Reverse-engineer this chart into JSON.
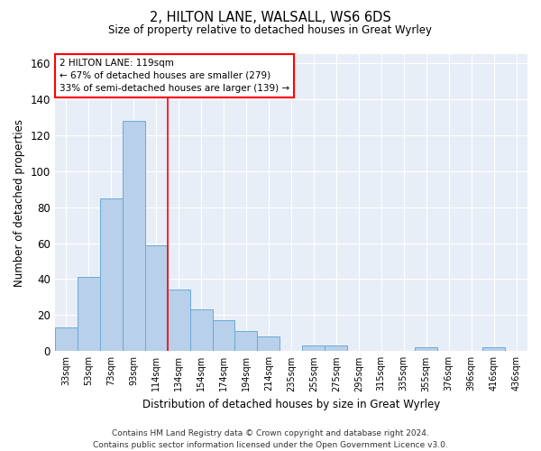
{
  "title1": "2, HILTON LANE, WALSALL, WS6 6DS",
  "title2": "Size of property relative to detached houses in Great Wyrley",
  "xlabel": "Distribution of detached houses by size in Great Wyrley",
  "ylabel": "Number of detached properties",
  "categories": [
    "33sqm",
    "53sqm",
    "73sqm",
    "93sqm",
    "114sqm",
    "134sqm",
    "154sqm",
    "174sqm",
    "194sqm",
    "214sqm",
    "235sqm",
    "255sqm",
    "275sqm",
    "295sqm",
    "315sqm",
    "335sqm",
    "355sqm",
    "376sqm",
    "396sqm",
    "416sqm",
    "436sqm"
  ],
  "values": [
    13,
    41,
    85,
    128,
    59,
    34,
    23,
    17,
    11,
    8,
    0,
    3,
    3,
    0,
    0,
    0,
    2,
    0,
    0,
    2,
    0
  ],
  "bar_color": "#b8d0ea",
  "bar_edge_color": "#6aaad4",
  "vline_x": 4.5,
  "vline_color": "red",
  "annotation_text": "2 HILTON LANE: 119sqm\n← 67% of detached houses are smaller (279)\n33% of semi-detached houses are larger (139) →",
  "annotation_box_color": "white",
  "annotation_box_edge": "red",
  "ylim": [
    0,
    165
  ],
  "yticks": [
    0,
    20,
    40,
    60,
    80,
    100,
    120,
    140,
    160
  ],
  "background_color": "#e8eef8",
  "grid_color": "white",
  "footer": "Contains HM Land Registry data © Crown copyright and database right 2024.\nContains public sector information licensed under the Open Government Licence v3.0."
}
